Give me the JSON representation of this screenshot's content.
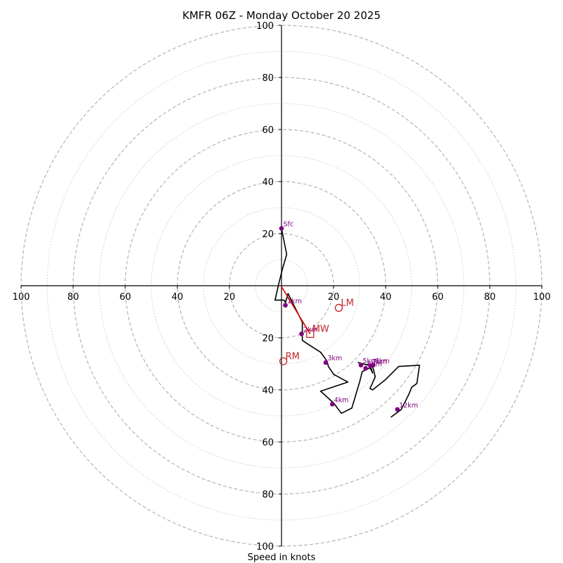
{
  "chart_data": {
    "type": "hodograph",
    "title": "KMFR 06Z - Monday October 20 2025",
    "xlabel": "Speed in knots",
    "axis_range": [
      -100,
      100
    ],
    "ring_major": [
      20,
      40,
      60,
      80,
      100
    ],
    "ring_minor": [
      10,
      30,
      50,
      70,
      90
    ],
    "axis_ticks": {
      "right": [
        "20",
        "40",
        "60",
        "80",
        "100"
      ],
      "left": [
        "20",
        "40",
        "60",
        "80",
        "100"
      ],
      "top": [
        "20",
        "40",
        "60",
        "80",
        "100"
      ],
      "bottom": [
        "20",
        "40",
        "60",
        "80",
        "100"
      ]
    },
    "trace": [
      [
        0,
        22
      ],
      [
        2,
        12
      ],
      [
        0.5,
        7
      ],
      [
        -1,
        1
      ],
      [
        -2.5,
        -5.5
      ],
      [
        1,
        -5.5
      ],
      [
        1.5,
        -6.5
      ],
      [
        2.5,
        -3
      ],
      [
        3.5,
        -5
      ],
      [
        6,
        -10
      ],
      [
        8,
        -14
      ],
      [
        8,
        -18.5
      ],
      [
        8,
        -21
      ],
      [
        11,
        -23
      ],
      [
        15,
        -25.5
      ],
      [
        17.5,
        -29
      ],
      [
        18,
        -31
      ],
      [
        20,
        -34
      ],
      [
        25.5,
        -37
      ],
      [
        15,
        -40.5
      ],
      [
        20,
        -45
      ],
      [
        23,
        -49
      ],
      [
        27,
        -47
      ],
      [
        30,
        -37
      ],
      [
        31,
        -33
      ],
      [
        34,
        -31.5
      ],
      [
        35,
        -33.5
      ],
      [
        34,
        -30.5
      ],
      [
        31,
        -30
      ],
      [
        29.5,
        -29.5
      ],
      [
        35,
        -31
      ],
      [
        36,
        -35
      ],
      [
        34,
        -39.5
      ],
      [
        35,
        -40
      ],
      [
        40,
        -36
      ],
      [
        45,
        -31
      ],
      [
        53,
        -30.5
      ],
      [
        52,
        -37.5
      ],
      [
        50,
        -39
      ],
      [
        49,
        -41.5
      ],
      [
        46,
        -47.5
      ],
      [
        42,
        -50.5
      ]
    ],
    "markers": [
      {
        "label": "Sfc",
        "u": 0,
        "v": 22
      },
      {
        "label": "1km",
        "u": 1.5,
        "v": -7.5
      },
      {
        "label": "2km",
        "u": 7.7,
        "v": -18.5
      },
      {
        "label": "3km",
        "u": 17,
        "v": -29.5
      },
      {
        "label": "4km",
        "u": 19.5,
        "v": -45.5
      },
      {
        "label": "5km",
        "u": 30.5,
        "v": -30.5
      },
      {
        "label": "6km",
        "u": 32.3,
        "v": -31.7
      },
      {
        "label": "7km",
        "u": 34.2,
        "v": -30.8
      },
      {
        "label": "8km",
        "u": 35.2,
        "v": -30.5
      },
      {
        "label": "12km",
        "u": 44.5,
        "v": -47.5
      }
    ],
    "marker_label_color": "#800080",
    "marker_color": "#800080",
    "trace_color": "#000000",
    "mean_wind": {
      "label": "MW",
      "u": 11,
      "v": -18.5
    },
    "mean_wind_segment": [
      [
        -0.2,
        0
      ],
      [
        11,
        -18.5
      ]
    ],
    "left_mover": {
      "label": "LM",
      "u": 22,
      "v": -8.5
    },
    "right_mover": {
      "label": "RM",
      "u": 0.7,
      "v": -29
    },
    "storm_motion_color": "#c0282a"
  }
}
